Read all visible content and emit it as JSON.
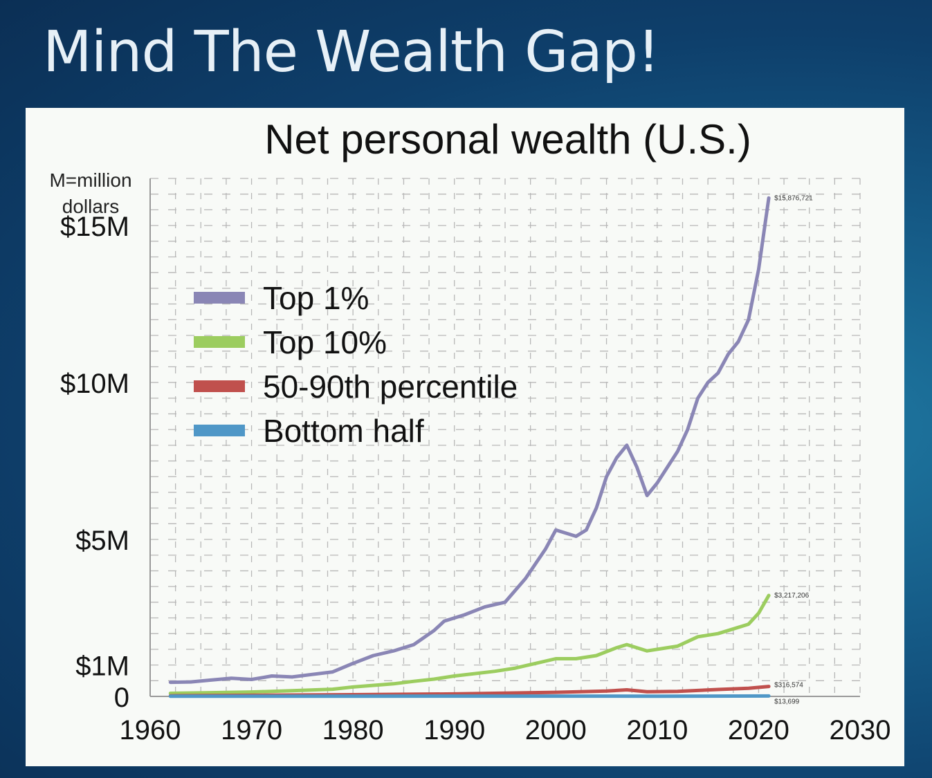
{
  "slide": {
    "title": "Mind The Wealth Gap!"
  },
  "chart_data": {
    "type": "line",
    "title": "Net personal wealth (U.S.)",
    "y_unit_note": [
      "M=million",
      "dollars"
    ],
    "xlim": [
      1960,
      2030
    ],
    "ylim": [
      0,
      16500000
    ],
    "x_ticks": [
      1960,
      1970,
      1980,
      1990,
      2000,
      2010,
      2020,
      2030
    ],
    "y_ticks": [
      {
        "value": 0,
        "label": "0"
      },
      {
        "value": 1000000,
        "label": "$1M"
      },
      {
        "value": 5000000,
        "label": "$5M"
      },
      {
        "value": 10000000,
        "label": "$10M"
      },
      {
        "value": 15000000,
        "label": "$15M"
      }
    ],
    "grid": true,
    "legend_position": "upper-left",
    "series": [
      {
        "name": "Top 1%",
        "color": "#8a86b5",
        "end_label": "$15,876,721",
        "x": [
          1962,
          1964,
          1966,
          1968,
          1970,
          1972,
          1974,
          1976,
          1978,
          1980,
          1982,
          1984,
          1986,
          1988,
          1989,
          1991,
          1993,
          1995,
          1997,
          1999,
          2000,
          2002,
          2003,
          2004,
          2005,
          2006,
          2007,
          2008,
          2009,
          2010,
          2011,
          2012,
          2013,
          2014,
          2015,
          2016,
          2017,
          2018,
          2019,
          2020,
          2021
        ],
        "y": [
          450000,
          460000,
          520000,
          580000,
          540000,
          650000,
          620000,
          700000,
          780000,
          1050000,
          1300000,
          1450000,
          1650000,
          2100000,
          2400000,
          2600000,
          2850000,
          3000000,
          3750000,
          4700000,
          5300000,
          5100000,
          5300000,
          6000000,
          7000000,
          7600000,
          8000000,
          7300000,
          6400000,
          6800000,
          7300000,
          7800000,
          8500000,
          9500000,
          10000000,
          10300000,
          10900000,
          11300000,
          12000000,
          13600000,
          15876721
        ]
      },
      {
        "name": "Top 10%",
        "color": "#9ccd5f",
        "end_label": "$3,217,206",
        "x": [
          1962,
          1966,
          1970,
          1974,
          1978,
          1980,
          1984,
          1986,
          1988,
          1990,
          1994,
          1996,
          1998,
          2000,
          2002,
          2004,
          2006,
          2007,
          2009,
          2011,
          2012,
          2014,
          2016,
          2017,
          2019,
          2020,
          2021
        ],
        "y": [
          100000,
          120000,
          140000,
          180000,
          230000,
          300000,
          400000,
          480000,
          550000,
          650000,
          800000,
          900000,
          1050000,
          1200000,
          1200000,
          1300000,
          1550000,
          1650000,
          1450000,
          1550000,
          1600000,
          1900000,
          2000000,
          2100000,
          2300000,
          2650000,
          3217206
        ]
      },
      {
        "name": "50-90th percentile",
        "color": "#c0504d",
        "end_label": "$316,574",
        "x": [
          1962,
          1970,
          1980,
          1990,
          2000,
          2005,
          2007,
          2009,
          2012,
          2016,
          2019,
          2021
        ],
        "y": [
          20000,
          35000,
          55000,
          80000,
          130000,
          170000,
          210000,
          150000,
          160000,
          220000,
          260000,
          316574
        ]
      },
      {
        "name": "Bottom half",
        "color": "#4f97c7",
        "end_label": "$13,699",
        "x": [
          1962,
          1980,
          2000,
          2010,
          2021
        ],
        "y": [
          5000,
          7000,
          9000,
          6000,
          13699
        ]
      }
    ]
  }
}
